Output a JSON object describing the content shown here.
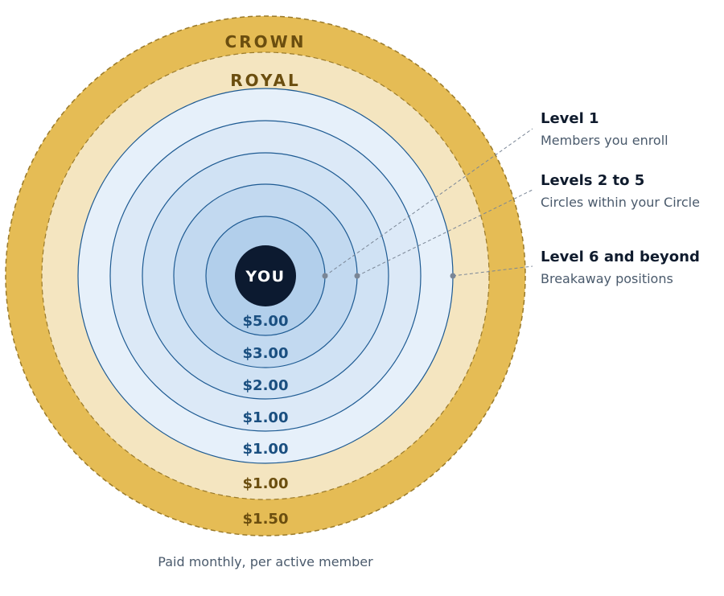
{
  "colors": {
    "crown": "#e5bc55",
    "royal": "#f4e5c0",
    "ring_light": "#e6f0fa",
    "ring_2": "#dce9f7",
    "ring_3": "#d0e2f4",
    "ring_4": "#c2d9f0",
    "ring_5": "#b2cfeb",
    "ring_stroke": "#1d5a92",
    "center": "#0c1a30"
  },
  "center_label": "YOU",
  "tiers": {
    "crown": {
      "label": "CROWN",
      "value": "$1.50"
    },
    "royal": {
      "label": "ROYAL",
      "value": "$1.00"
    }
  },
  "levels": [
    {
      "value": "$5.00"
    },
    {
      "value": "$3.00"
    },
    {
      "value": "$2.00"
    },
    {
      "value": "$1.00"
    },
    {
      "value": "$1.00"
    }
  ],
  "callouts": [
    {
      "title": "Level 1",
      "subtitle": "Members you enroll"
    },
    {
      "title": "Levels 2 to 5",
      "subtitle": "Circles within your Circle"
    },
    {
      "title": "Level 6 and beyond",
      "subtitle": "Breakaway positions"
    }
  ],
  "footer": "Paid monthly, per active member"
}
